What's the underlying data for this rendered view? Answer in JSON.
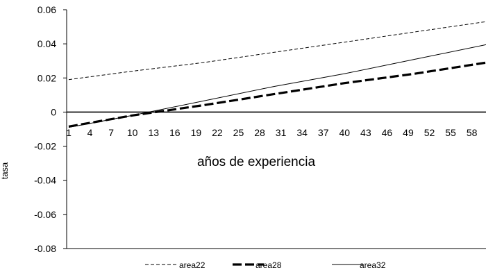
{
  "chart_data": {
    "type": "line",
    "title": "",
    "xlabel": "años de experiencia",
    "ylabel": "tasa",
    "x_tick_labels": [
      "1",
      "4",
      "7",
      "10",
      "13",
      "16",
      "19",
      "22",
      "25",
      "28",
      "31",
      "34",
      "37",
      "40",
      "43",
      "46",
      "49",
      "52",
      "55",
      "58"
    ],
    "x_range": [
      1,
      60
    ],
    "ylim": [
      -0.08,
      0.06
    ],
    "y_ticks": [
      -0.08,
      -0.06,
      -0.04,
      -0.02,
      0,
      0.02,
      0.04,
      0.06
    ],
    "y_tick_labels": [
      "-0.08",
      "-0.06",
      "-0.04",
      "-0.02",
      "0",
      "0.02",
      "0.04",
      "0.06"
    ],
    "grid": false,
    "legend_position": "bottom",
    "series": [
      {
        "name": "area22",
        "style": "thin-dashed",
        "color": "#000000",
        "x": [
          1,
          10,
          20,
          30,
          40,
          50,
          60
        ],
        "y": [
          0.019,
          0.024,
          0.029,
          0.035,
          0.041,
          0.047,
          0.053
        ]
      },
      {
        "name": "area28",
        "style": "thick-dashed",
        "color": "#000000",
        "x": [
          1,
          10,
          20,
          30,
          40,
          50,
          60
        ],
        "y": [
          -0.0085,
          -0.002,
          0.004,
          0.0105,
          0.017,
          0.0225,
          0.029
        ]
      },
      {
        "name": "area32",
        "style": "thin-solid",
        "color": "#000000",
        "x": [
          1,
          10,
          20,
          30,
          40,
          50,
          60
        ],
        "y": [
          -0.009,
          -0.002,
          0.0065,
          0.015,
          0.0225,
          0.031,
          0.0395
        ]
      }
    ]
  }
}
